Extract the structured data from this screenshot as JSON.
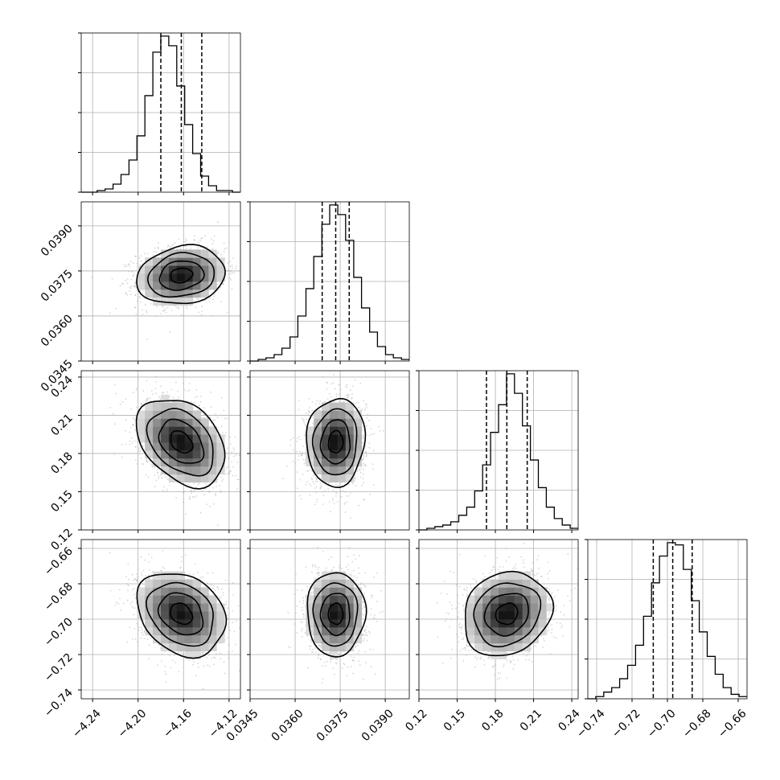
{
  "chart_data": {
    "type": "corner",
    "grid": true,
    "parameters": [
      {
        "range": [
          -4.25,
          -4.11
        ],
        "ticks": [
          -4.24,
          -4.2,
          -4.16,
          -4.12
        ],
        "tick_labels": [
          "−4.24",
          "−4.20",
          "−4.16",
          "−4.12"
        ],
        "mean": -4.162,
        "sd": 0.018,
        "quantiles": [
          -4.18,
          -4.162,
          -4.144
        ],
        "hist_edges": [
          -4.25,
          -4.243,
          -4.236,
          -4.229,
          -4.222,
          -4.215,
          -4.208,
          -4.201,
          -4.194,
          -4.187,
          -4.18,
          -4.173,
          -4.166,
          -4.159,
          -4.152,
          -4.145,
          -4.138,
          -4.131,
          -4.124,
          -4.117,
          -4.11
        ],
        "hist_counts": [
          0,
          0,
          1,
          2,
          5,
          11,
          20,
          35,
          60,
          87,
          97,
          91,
          66,
          42,
          24,
          10,
          4,
          1,
          1,
          0
        ]
      },
      {
        "range": [
          0.0345,
          0.0398
        ],
        "ticks": [
          0.0345,
          0.036,
          0.0375,
          0.039
        ],
        "tick_labels": [
          "0.0345",
          "0.0360",
          "0.0375",
          "0.0390"
        ],
        "mean": 0.03735,
        "sd": 0.00045,
        "quantiles": [
          0.0369,
          0.03735,
          0.0378
        ],
        "hist_edges": [
          0.0345,
          0.03477,
          0.03503,
          0.0353,
          0.03556,
          0.03583,
          0.03609,
          0.03636,
          0.03662,
          0.03689,
          0.03715,
          0.03742,
          0.03768,
          0.03795,
          0.03821,
          0.03848,
          0.03874,
          0.03901,
          0.03927,
          0.03954,
          0.0398
        ],
        "hist_counts": [
          0,
          1,
          2,
          4,
          8,
          15,
          28,
          45,
          65,
          85,
          97,
          91,
          75,
          52,
          33,
          18,
          9,
          4,
          2,
          1
        ]
      },
      {
        "range": [
          0.12,
          0.245
        ],
        "ticks": [
          0.12,
          0.15,
          0.18,
          0.21,
          0.24
        ],
        "tick_labels": [
          "0.12",
          "0.15",
          "0.18",
          "0.21",
          "0.24"
        ],
        "mean": 0.189,
        "sd": 0.016,
        "quantiles": [
          0.173,
          0.189,
          0.205
        ],
        "hist_edges": [
          0.12,
          0.12625,
          0.1325,
          0.13875,
          0.145,
          0.15125,
          0.1575,
          0.16375,
          0.17,
          0.17625,
          0.1825,
          0.18875,
          0.195,
          0.20125,
          0.2075,
          0.21375,
          0.22,
          0.22625,
          0.2325,
          0.23875,
          0.245
        ],
        "hist_counts": [
          0,
          1,
          2,
          3,
          5,
          9,
          14,
          24,
          40,
          60,
          77,
          96,
          84,
          64,
          43,
          26,
          14,
          7,
          3,
          1
        ]
      },
      {
        "range": [
          -0.745,
          -0.655
        ],
        "ticks": [
          -0.74,
          -0.72,
          -0.7,
          -0.68,
          -0.66
        ],
        "tick_labels": [
          "−0.74",
          "−0.72",
          "−0.70",
          "−0.68",
          "−0.66"
        ],
        "mean": -0.697,
        "sd": 0.011,
        "quantiles": [
          -0.708,
          -0.697,
          -0.686
        ],
        "hist_edges": [
          -0.745,
          -0.7405,
          -0.736,
          -0.7315,
          -0.727,
          -0.7225,
          -0.718,
          -0.7135,
          -0.709,
          -0.7045,
          -0.7,
          -0.6955,
          -0.691,
          -0.6865,
          -0.682,
          -0.6775,
          -0.673,
          -0.6685,
          -0.664,
          -0.6595,
          -0.655
        ],
        "hist_counts": [
          0,
          1,
          3,
          5,
          9,
          15,
          24,
          37,
          52,
          64,
          70,
          69,
          58,
          44,
          30,
          19,
          11,
          5,
          2,
          1
        ]
      }
    ],
    "correlations": {
      "1-0": 0.15,
      "2-0": -0.35,
      "2-1": 0.05,
      "3-0": -0.25,
      "3-1": 0.0,
      "3-2": 0.15
    },
    "contour_levels_sigma": [
      0.5,
      1.0,
      1.5,
      2.0
    ],
    "colors": {
      "marks": "#000000",
      "scatter": "#b5b5b5",
      "grid": "#b0b0b0"
    }
  }
}
